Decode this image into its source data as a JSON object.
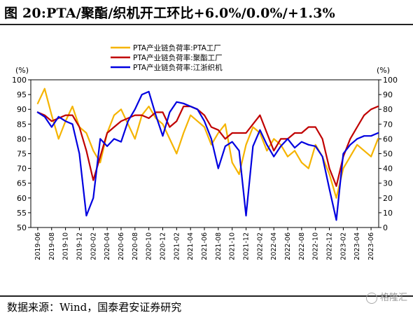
{
  "header": {
    "title": "图 20:PTA/聚酯/织机开工环比+6.0%/0.0%/+1.3%"
  },
  "footer": {
    "source": "数据来源：Wind，国泰君安证券研究",
    "watermark": "格隆汇"
  },
  "chart_data": {
    "type": "line",
    "title": "图 20:PTA/聚酯/织机开工环比+6.0%/0.0%/+1.3%",
    "xlabel": "",
    "ylabel_left": "(%)",
    "ylabel_right": "(%)",
    "ylim_left": [
      50,
      100
    ],
    "ylim_right": [
      0,
      100
    ],
    "yticks_left": [
      "50",
      "55",
      "60",
      "65",
      "70",
      "75",
      "80",
      "85",
      "90",
      "95",
      "100"
    ],
    "yticks_right": [
      "0",
      "10",
      "20",
      "30",
      "40",
      "50",
      "60",
      "70",
      "80",
      "90",
      "100"
    ],
    "x_ticks": [
      "2019-06",
      "2019-08",
      "2019-10",
      "2019-12",
      "2020-02",
      "2020-04",
      "2020-06",
      "2020-08",
      "2020-10",
      "2020-12",
      "2021-02",
      "2021-04",
      "2021-06",
      "2021-08",
      "2021-10",
      "2021-12",
      "2022-02",
      "2022-04",
      "2022-06",
      "2022-08",
      "2022-10",
      "2022-12",
      "2023-02",
      "2023-04",
      "2023-06"
    ],
    "legend": "top",
    "grid": false,
    "series": [
      {
        "name": "PTA产业链负荷率:PTA工厂",
        "axis": "left",
        "color": "#F5B400",
        "x": [
          "2019-06",
          "2019-07",
          "2019-08",
          "2019-09",
          "2019-10",
          "2019-11",
          "2019-12",
          "2020-01",
          "2020-02",
          "2020-03",
          "2020-04",
          "2020-05",
          "2020-06",
          "2020-07",
          "2020-08",
          "2020-09",
          "2020-10",
          "2020-11",
          "2020-12",
          "2021-01",
          "2021-02",
          "2021-03",
          "2021-04",
          "2021-05",
          "2021-06",
          "2021-07",
          "2021-08",
          "2021-09",
          "2021-10",
          "2021-11",
          "2021-12",
          "2022-01",
          "2022-02",
          "2022-03",
          "2022-04",
          "2022-05",
          "2022-06",
          "2022-07",
          "2022-08",
          "2022-09",
          "2022-10",
          "2022-11",
          "2022-12",
          "2023-01",
          "2023-02",
          "2023-03",
          "2023-04",
          "2023-05",
          "2023-06",
          "2023-07"
        ],
        "values": [
          92,
          97,
          88,
          80,
          86,
          91,
          84,
          82,
          76,
          72,
          82,
          88,
          90,
          85,
          80,
          88,
          91,
          87,
          85,
          80,
          75,
          82,
          88,
          86,
          84,
          78,
          82,
          85,
          72,
          68,
          78,
          84,
          82,
          76,
          80,
          78,
          74,
          76,
          72,
          70,
          78,
          74,
          68,
          60,
          70,
          74,
          78,
          76,
          74,
          80
        ]
      },
      {
        "name": "PTA产业链负荷率:聚酯工厂",
        "axis": "left",
        "color": "#C00000",
        "x": [
          "2019-06",
          "2019-07",
          "2019-08",
          "2019-09",
          "2019-10",
          "2019-11",
          "2019-12",
          "2020-01",
          "2020-02",
          "2020-03",
          "2020-04",
          "2020-05",
          "2020-06",
          "2020-07",
          "2020-08",
          "2020-09",
          "2020-10",
          "2020-11",
          "2020-12",
          "2021-01",
          "2021-02",
          "2021-03",
          "2021-04",
          "2021-05",
          "2021-06",
          "2021-07",
          "2021-08",
          "2021-09",
          "2021-10",
          "2021-11",
          "2021-12",
          "2022-01",
          "2022-02",
          "2022-03",
          "2022-04",
          "2022-05",
          "2022-06",
          "2022-07",
          "2022-08",
          "2022-09",
          "2022-10",
          "2022-11",
          "2022-12",
          "2023-01",
          "2023-02",
          "2023-03",
          "2023-04",
          "2023-05",
          "2023-06",
          "2023-07"
        ],
        "values": [
          89,
          88,
          86,
          87,
          88,
          88,
          84,
          76,
          66,
          74,
          82,
          84,
          86,
          87,
          88,
          88,
          87,
          89,
          89,
          84,
          86,
          91,
          91,
          90,
          88,
          84,
          83,
          80,
          82,
          82,
          82,
          85,
          88,
          82,
          76,
          80,
          80,
          82,
          82,
          84,
          84,
          80,
          70,
          64,
          74,
          80,
          84,
          88,
          90,
          91
        ]
      },
      {
        "name": "PTA产业链负荷率:江浙织机",
        "axis": "right",
        "color": "#0000E0",
        "x": [
          "2019-06",
          "2019-07",
          "2019-08",
          "2019-09",
          "2019-10",
          "2019-11",
          "2019-12",
          "2020-01",
          "2020-02",
          "2020-03",
          "2020-04",
          "2020-05",
          "2020-06",
          "2020-07",
          "2020-08",
          "2020-09",
          "2020-10",
          "2020-11",
          "2020-12",
          "2021-01",
          "2021-02",
          "2021-03",
          "2021-04",
          "2021-05",
          "2021-06",
          "2021-07",
          "2021-08",
          "2021-09",
          "2021-10",
          "2021-11",
          "2021-12",
          "2022-01",
          "2022-02",
          "2022-03",
          "2022-04",
          "2022-05",
          "2022-06",
          "2022-07",
          "2022-08",
          "2022-09",
          "2022-10",
          "2022-11",
          "2022-12",
          "2023-01",
          "2023-02",
          "2023-03",
          "2023-04",
          "2023-05",
          "2023-06",
          "2023-07"
        ],
        "values": [
          78,
          75,
          68,
          75,
          72,
          70,
          50,
          8,
          20,
          60,
          55,
          60,
          58,
          72,
          80,
          90,
          92,
          76,
          62,
          78,
          85,
          84,
          82,
          80,
          72,
          60,
          40,
          55,
          58,
          52,
          8,
          55,
          66,
          56,
          48,
          55,
          60,
          54,
          58,
          56,
          55,
          48,
          26,
          5,
          50,
          56,
          60,
          62,
          62,
          64
        ]
      }
    ]
  }
}
